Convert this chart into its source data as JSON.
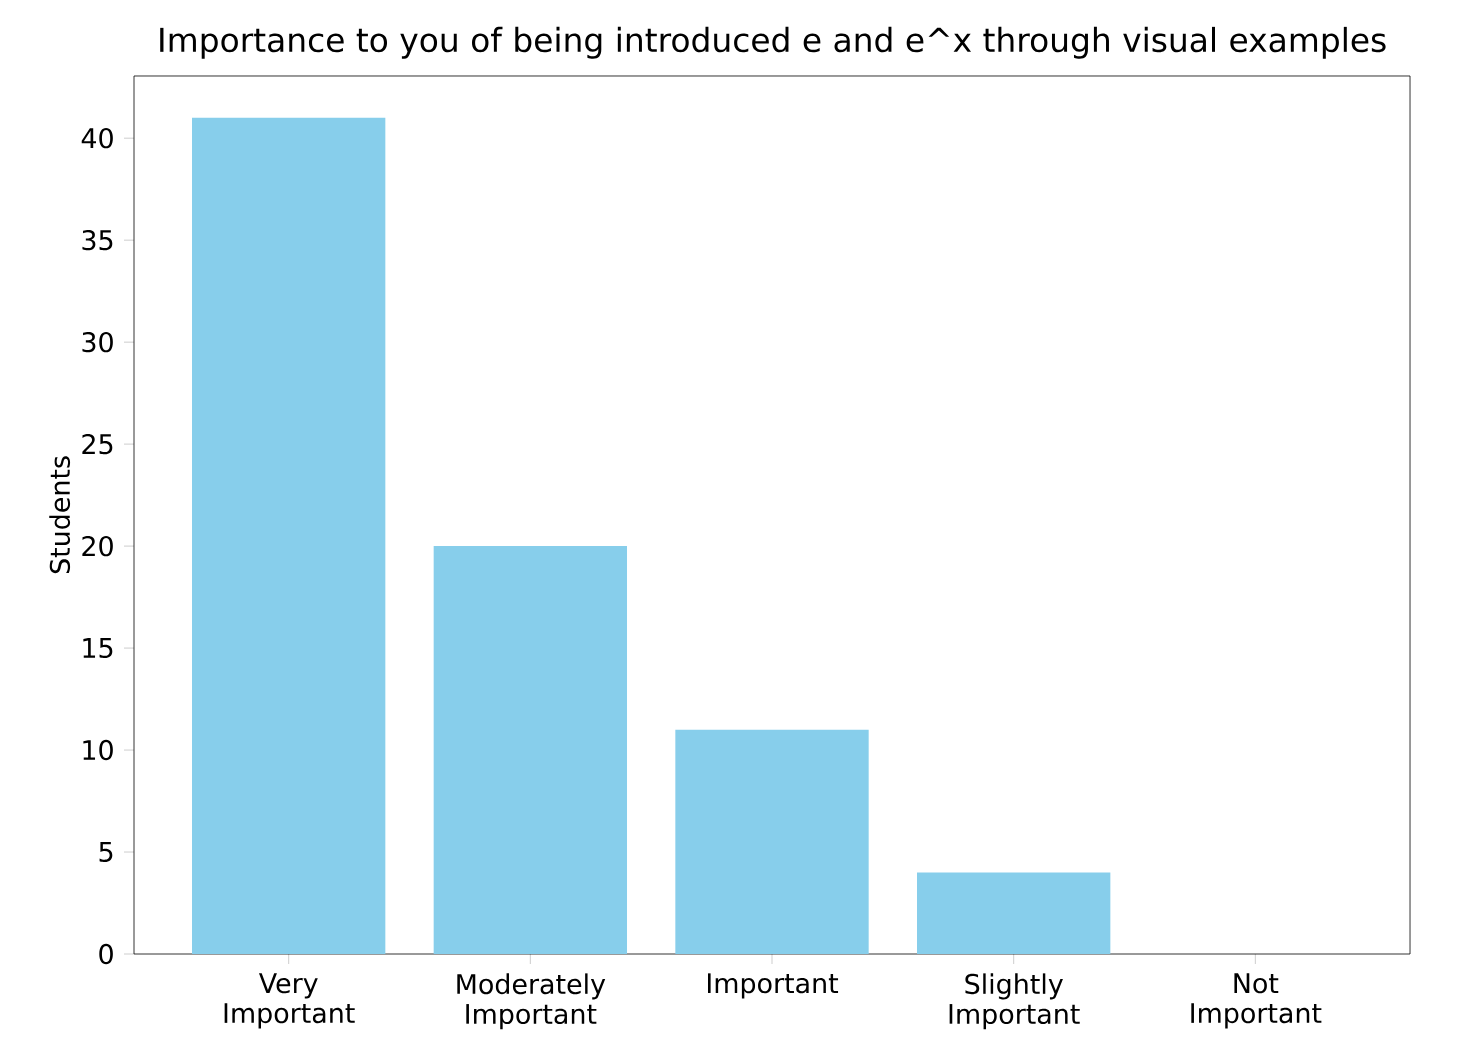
{
  "chart_data": {
    "type": "bar",
    "title": "Importance to you of being introduced e and e^x through visual examples",
    "ylabel": "Students",
    "categories": [
      "Very Important",
      "Moderately Important",
      "Important",
      "Slightly Important",
      "Not Important"
    ],
    "values": [
      41,
      20,
      11,
      4,
      0
    ],
    "color": "#87ceeb",
    "ylim": [
      0,
      43.05
    ],
    "yticks": [
      0,
      5,
      10,
      15,
      20,
      25,
      30,
      35,
      40
    ]
  }
}
